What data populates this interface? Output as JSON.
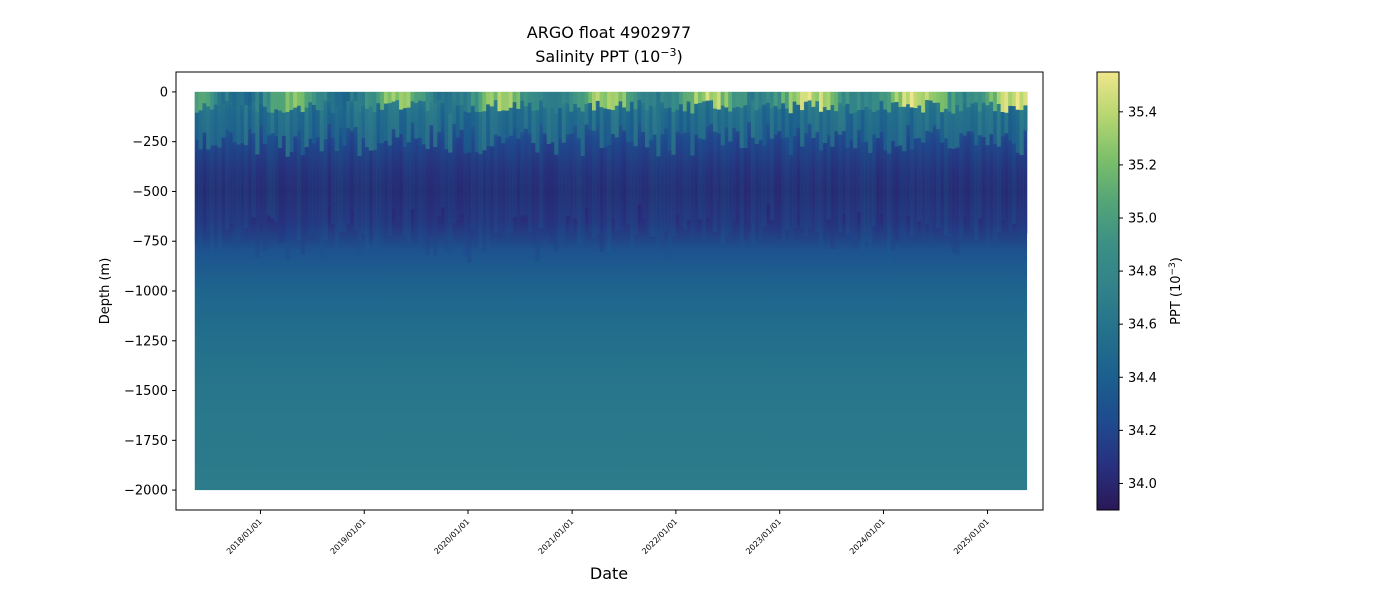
{
  "chart_data": {
    "type": "heatmap",
    "title": "ARGO float 4902977",
    "subtitle_prefix": "Salinity PPT (10",
    "subtitle_sup": "−3",
    "subtitle_suffix": ")",
    "xlabel": "Date",
    "ylabel": "Depth (m)",
    "colorbar_label_prefix": "PPT (10",
    "colorbar_label_sup": "−3",
    "colorbar_label_suffix": ")",
    "x_ticks": [
      "2018/01/01",
      "2019/01/01",
      "2020/01/01",
      "2021/01/01",
      "2022/01/01",
      "2023/01/01",
      "2024/01/01",
      "2025/01/01"
    ],
    "x_range": [
      "2017-03-10",
      "2025-07-15"
    ],
    "data_x_range": [
      "2017-05-15",
      "2025-05-20"
    ],
    "y_ticks": [
      0,
      -250,
      -500,
      -750,
      -1000,
      -1250,
      -1500,
      -1750,
      -2000
    ],
    "ylim": [
      -2100,
      100
    ],
    "data_depth_range": [
      0,
      -2000
    ],
    "colorbar_ticks": [
      34.0,
      34.2,
      34.4,
      34.6,
      34.8,
      35.0,
      35.2,
      35.4
    ],
    "colorbar_range": [
      33.9,
      35.55
    ],
    "colormap": [
      "#2a1857",
      "#28307f",
      "#1f4a8f",
      "#1b5f8e",
      "#23708c",
      "#30818a",
      "#3a8f86",
      "#52a478",
      "#7bbf6a",
      "#b6d670",
      "#f0e68c"
    ],
    "salinity_profile": [
      {
        "depth": 0,
        "value": 35.05
      },
      {
        "depth": -100,
        "value": 34.55
      },
      {
        "depth": -250,
        "value": 34.2
      },
      {
        "depth": -400,
        "value": 34.02
      },
      {
        "depth": -500,
        "value": 33.97
      },
      {
        "depth": -650,
        "value": 34.05
      },
      {
        "depth": -800,
        "value": 34.3
      },
      {
        "depth": -1000,
        "value": 34.45
      },
      {
        "depth": -1250,
        "value": 34.55
      },
      {
        "depth": -1500,
        "value": 34.62
      },
      {
        "depth": -2000,
        "value": 34.68
      }
    ],
    "grid": false,
    "legend": "colorbar-right"
  }
}
